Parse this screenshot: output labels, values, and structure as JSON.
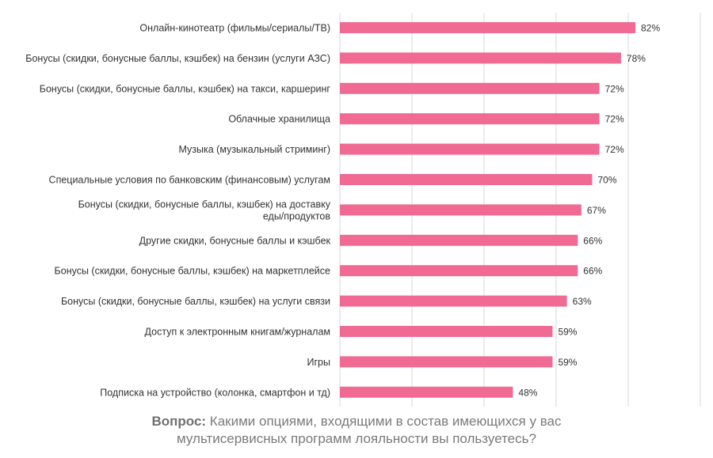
{
  "chart_data": {
    "type": "bar",
    "orientation": "horizontal",
    "categories": [
      "Онлайн-кинотеатр (фильмы/сериалы/ТВ)",
      "Бонусы (скидки, бонусные баллы, кэшбек) на бензин (услуги АЗС)",
      "Бонусы (скидки, бонусные баллы, кэшбек) на такси, каршеринг",
      "Облачные хранилища",
      "Музыка (музыкальный стриминг)",
      "Специальные условия по банковским (финансовым) услугам",
      "Бонусы (скидки, бонусные баллы, кэшбек) на доставку еды/продуктов",
      "Другие скидки, бонусные баллы и кэшбек",
      "Бонусы (скидки, бонусные баллы, кэшбек) на маркетплейсе",
      "Бонусы (скидки, бонусные баллы, кэшбек) на услуги связи",
      "Доступ к электронным книгам/журналам",
      "Игры",
      "Подписка на устройство (колонка, смартфон и тд)"
    ],
    "category_lines": [
      [
        "Онлайн-кинотеатр (фильмы/сериалы/ТВ)"
      ],
      [
        "Бонусы (скидки, бонусные баллы, кэшбек) на бензин (услуги АЗС)"
      ],
      [
        "Бонусы (скидки, бонусные баллы, кэшбек) на такси, каршеринг"
      ],
      [
        "Облачные хранилища"
      ],
      [
        "Музыка (музыкальный стриминг)"
      ],
      [
        "Специальные условия по банковским (финансовым) услугам"
      ],
      [
        "Бонусы (скидки, бонусные баллы, кэшбек) на доставку",
        "еды/продуктов"
      ],
      [
        "Другие скидки, бонусные баллы и кэшбек"
      ],
      [
        "Бонусы (скидки, бонусные баллы, кэшбек) на маркетплейсе"
      ],
      [
        "Бонусы (скидки, бонусные баллы, кэшбек) на услуги связи"
      ],
      [
        "Доступ к электронным книгам/журналам"
      ],
      [
        "Игры"
      ],
      [
        "Подписка на устройство (колонка, смартфон и тд)"
      ]
    ],
    "values": [
      82,
      78,
      72,
      72,
      72,
      70,
      67,
      66,
      66,
      63,
      59,
      59,
      48
    ],
    "value_labels": [
      "82%",
      "78%",
      "72%",
      "72%",
      "72%",
      "70%",
      "67%",
      "66%",
      "66%",
      "63%",
      "59%",
      "59%",
      "48%"
    ],
    "xlim": [
      0,
      100
    ],
    "x_grid_step": 20,
    "grid": true,
    "bar_color": "#f06a93",
    "grid_color": "#d9d9d9"
  },
  "caption": {
    "bold": "Вопрос:",
    "line1": " Какими опциями, входящими в состав имеющихся у вас",
    "line2": "мультисервисных программ лояльности вы пользуетесь?"
  }
}
